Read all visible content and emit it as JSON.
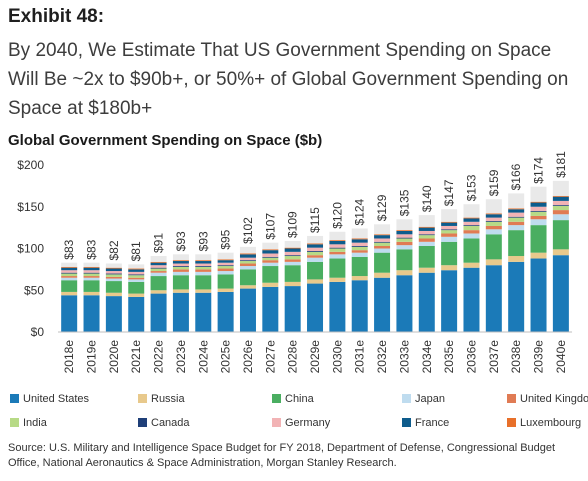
{
  "header": {
    "exhibit": "Exhibit 48:",
    "headline": "By 2040, We Estimate That US Government Spending on Space Will Be ~2x to $90b+, or 50%+ of Global Government Spending on Space at $180b+"
  },
  "chart_data": {
    "type": "bar",
    "stacked": true,
    "title": "Global Government Spending on Space ($b)",
    "xlabel": "",
    "ylabel": "",
    "ylim": [
      0,
      200
    ],
    "yticks": [
      "$0",
      "$50",
      "$100",
      "$150",
      "$200"
    ],
    "grid": false,
    "legend_position": "bottom",
    "categories": [
      "2018e",
      "2019e",
      "2020e",
      "2021e",
      "2022e",
      "2023e",
      "2024e",
      "2025e",
      "2026e",
      "2027e",
      "2028e",
      "2029e",
      "2030e",
      "2031e",
      "2032e",
      "2033e",
      "2034e",
      "2035e",
      "2036e",
      "2037e",
      "2038e",
      "2039e",
      "2040e"
    ],
    "totals_labels": [
      "$83",
      "$83",
      "$82",
      "$81",
      "$91",
      "$93",
      "$93",
      "$95",
      "$102",
      "$107",
      "$109",
      "$115",
      "$120",
      "$124",
      "$129",
      "$135",
      "$140",
      "$147",
      "$153",
      "$159",
      "$166",
      "$174",
      "$181"
    ],
    "totals": [
      83,
      83,
      82,
      81,
      91,
      93,
      93,
      95,
      102,
      107,
      109,
      115,
      120,
      124,
      129,
      135,
      140,
      147,
      153,
      159,
      166,
      174,
      181
    ],
    "series": [
      {
        "name": "United States",
        "color": "#1b7ab8",
        "values": [
          44,
          44,
          43,
          42,
          46,
          47,
          47,
          48,
          52,
          54,
          55,
          58,
          60,
          62,
          65,
          68,
          71,
          74,
          77,
          80,
          84,
          88,
          92
        ]
      },
      {
        "name": "Russia",
        "color": "#e8c98c",
        "values": [
          4,
          4,
          4,
          4,
          4,
          4,
          4,
          4,
          4,
          5,
          5,
          5,
          5,
          5,
          6,
          6,
          6,
          6,
          6,
          7,
          7,
          7,
          7
        ]
      },
      {
        "name": "China",
        "color": "#4aae61",
        "values": [
          14,
          14,
          14,
          14,
          17,
          17,
          17,
          17,
          19,
          20,
          20,
          21,
          23,
          23,
          24,
          25,
          26,
          28,
          29,
          30,
          31,
          33,
          35
        ]
      },
      {
        "name": "Japan",
        "color": "#bfdcef",
        "values": [
          3,
          3,
          3,
          3,
          4,
          4,
          4,
          4,
          4,
          4,
          4,
          5,
          5,
          5,
          5,
          5,
          5,
          6,
          6,
          6,
          6,
          7,
          7
        ]
      },
      {
        "name": "United Kingdom",
        "color": "#e07b54",
        "values": [
          2,
          2,
          2,
          2,
          2,
          3,
          3,
          3,
          3,
          3,
          3,
          3,
          3,
          3,
          3,
          4,
          4,
          4,
          4,
          4,
          4,
          4,
          5
        ]
      },
      {
        "name": "India",
        "color": "#b7da86",
        "values": [
          3,
          3,
          3,
          3,
          3,
          3,
          3,
          3,
          3,
          3,
          4,
          4,
          4,
          4,
          4,
          4,
          4,
          4,
          5,
          5,
          5,
          5,
          5
        ]
      },
      {
        "name": "Canada",
        "color": "#1f3f78",
        "values": [
          1,
          1,
          1,
          1,
          1,
          1,
          1,
          1,
          1,
          1,
          1,
          1,
          1,
          1,
          1,
          1,
          1,
          1,
          1,
          1,
          1,
          1,
          1
        ]
      },
      {
        "name": "Germany",
        "color": "#f2b3b5",
        "values": [
          3,
          3,
          3,
          3,
          3,
          3,
          3,
          3,
          3,
          4,
          4,
          4,
          4,
          4,
          4,
          4,
          4,
          4,
          4,
          4,
          5,
          5,
          5
        ]
      },
      {
        "name": "France",
        "color": "#0e5c8c",
        "values": [
          3,
          3,
          3,
          3,
          3,
          3,
          3,
          3,
          4,
          4,
          4,
          4,
          4,
          4,
          4,
          4,
          4,
          4,
          4,
          4,
          4,
          5,
          5
        ]
      },
      {
        "name": "Luxembourg",
        "color": "#e8702a",
        "values": [
          1,
          1,
          1,
          1,
          1,
          1,
          1,
          1,
          1,
          1,
          1,
          1,
          1,
          1,
          1,
          1,
          1,
          1,
          1,
          1,
          1,
          1,
          1
        ]
      },
      {
        "name": "",
        "color": "#e9e9e9",
        "values": [
          5,
          5,
          5,
          5,
          7,
          7,
          7,
          8,
          8,
          8,
          8,
          9,
          10,
          12,
          12,
          13,
          14,
          15,
          16,
          17,
          18,
          18,
          18
        ]
      }
    ]
  },
  "source": "Source: U.S. Military and Intelligence Space Budget for FY 2018, Department of Defense, Congressional Budget Office, National Aeronautics & Space Administration, Morgan Stanley Research."
}
